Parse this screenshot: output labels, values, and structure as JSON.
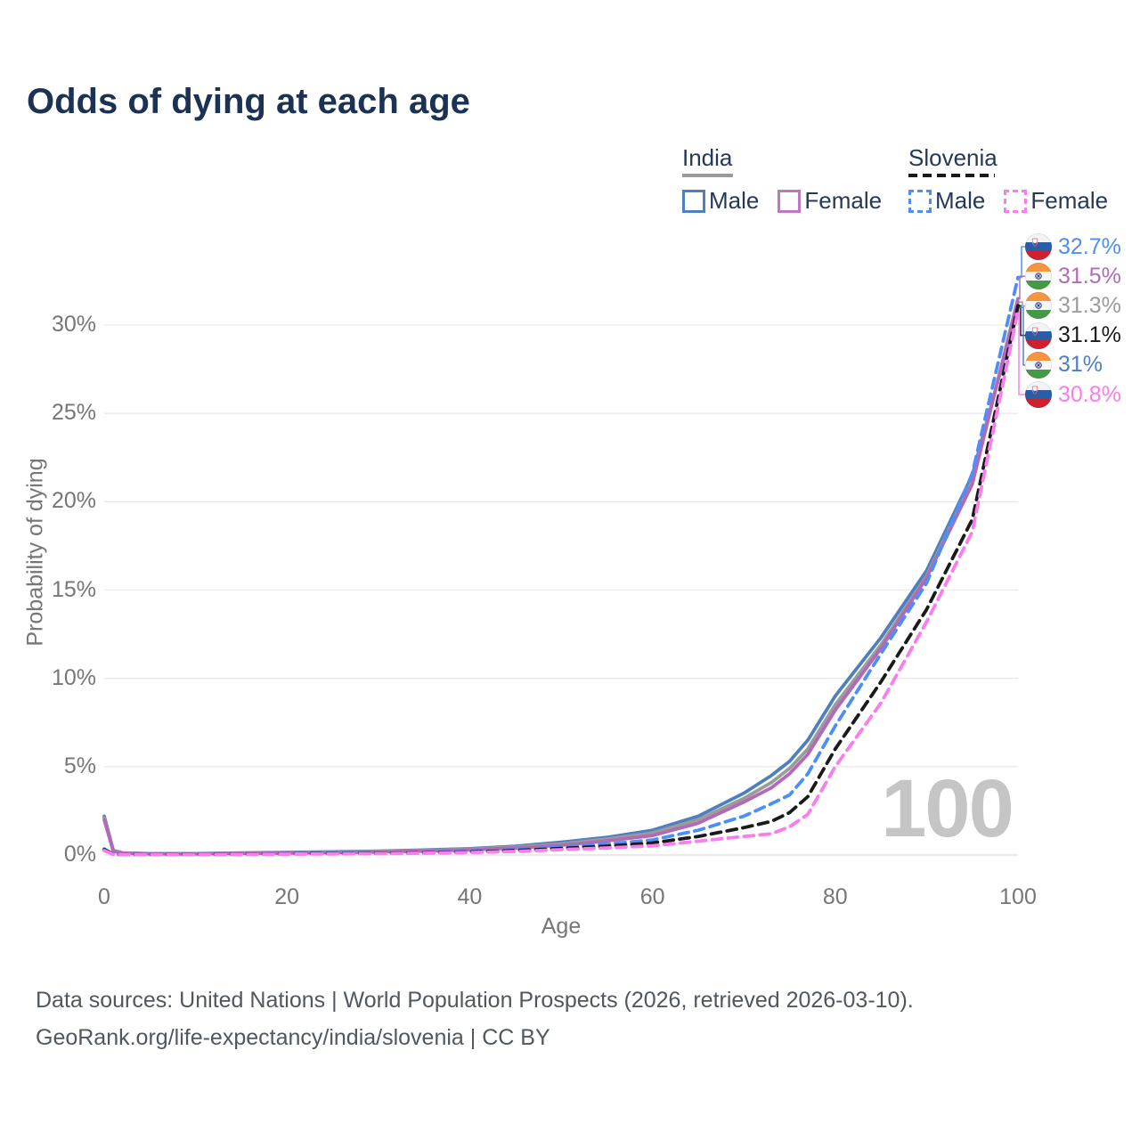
{
  "title": "Odds of dying at each age",
  "colors": {
    "title_text": "#1b3254",
    "legend_text": "#24395a",
    "axis_text": "#767676",
    "gridline": "#e9e9e9",
    "axis_line": "#dcdcdc",
    "watermark": "#c5c5c5",
    "india_male": "#4e7fbe",
    "india_female": "#b269b8",
    "india_both": "#9b9b9b",
    "slovenia_male": "#4d8ef7",
    "slovenia_both": "#1a1a1a",
    "slovenia_female": "#fb7ced",
    "india_flag": {
      "saffron": "#f79440",
      "white": "#f6f7f9",
      "green": "#459a45",
      "navy": "#2a3a8c"
    },
    "slovenia_flag": {
      "white": "#f2f3f5",
      "blue": "#2a5da8",
      "red": "#cf2030"
    }
  },
  "legend": {
    "groups": [
      {
        "id": "india",
        "label": "India",
        "underline": "solid",
        "underline_color": "#9b9b9b",
        "items": [
          {
            "label": "Male",
            "color": "#4e7fbe",
            "dashed": false,
            "checked": false
          },
          {
            "label": "Female",
            "color": "#bf77c0",
            "dashed": false,
            "checked": false
          }
        ]
      },
      {
        "id": "slovenia",
        "label": "Slovenia",
        "underline": "dashed",
        "underline_color": "#1a1a1a",
        "items": [
          {
            "label": "Male",
            "color": "#4d8ef7",
            "dashed": true,
            "checked": false
          },
          {
            "label": "Female",
            "color": "#fb7ced",
            "dashed": true,
            "checked": false
          }
        ]
      }
    ]
  },
  "chart_data": {
    "type": "line",
    "title": "Odds of dying at each age",
    "xlabel": "Age",
    "ylabel": "Probability of dying",
    "xlim": [
      0,
      100
    ],
    "ylim": [
      0,
      33
    ],
    "x_ticks": [
      0,
      20,
      40,
      60,
      80,
      100
    ],
    "y_ticks": [
      {
        "label": "0%",
        "pct": 0
      },
      {
        "label": "5%",
        "pct": 5
      },
      {
        "label": "10%",
        "pct": 10
      },
      {
        "label": "15%",
        "pct": 15
      },
      {
        "label": "20%",
        "pct": 20
      },
      {
        "label": "25%",
        "pct": 25
      },
      {
        "label": "30%",
        "pct": 30
      }
    ],
    "grid": "horizontal",
    "legend_position": "top-right",
    "hover_age_watermark": "100",
    "ages": [
      0,
      1,
      2,
      5,
      10,
      15,
      20,
      25,
      30,
      35,
      40,
      45,
      50,
      55,
      60,
      65,
      70,
      73,
      75,
      77,
      80,
      85,
      90,
      95,
      100
    ],
    "series": [
      {
        "id": "india-male",
        "name": "India Male",
        "color": "#4e7fbe",
        "dashed": false,
        "end_value_label": "31%",
        "values": [
          2.2,
          0.25,
          0.12,
          0.08,
          0.08,
          0.12,
          0.15,
          0.18,
          0.22,
          0.28,
          0.36,
          0.5,
          0.72,
          1.0,
          1.4,
          2.2,
          3.5,
          4.5,
          5.3,
          6.5,
          9.0,
          12.3,
          16.1,
          21.5,
          31.0
        ]
      },
      {
        "id": "india-both",
        "name": "India (both sexes)",
        "color": "#9b9b9b",
        "dashed": false,
        "end_value_label": "31.3%",
        "values": [
          2.1,
          0.22,
          0.11,
          0.07,
          0.07,
          0.1,
          0.13,
          0.16,
          0.2,
          0.25,
          0.33,
          0.45,
          0.63,
          0.9,
          1.25,
          2.0,
          3.2,
          4.1,
          4.9,
          6.0,
          8.5,
          11.9,
          15.8,
          21.2,
          31.3
        ]
      },
      {
        "id": "india-female",
        "name": "India Female",
        "color": "#b269b8",
        "dashed": false,
        "end_value_label": "31.5%",
        "values": [
          2.0,
          0.2,
          0.1,
          0.06,
          0.06,
          0.09,
          0.11,
          0.14,
          0.17,
          0.22,
          0.29,
          0.4,
          0.55,
          0.8,
          1.1,
          1.8,
          3.0,
          3.8,
          4.6,
          5.7,
          8.2,
          11.7,
          15.7,
          21.0,
          31.5
        ]
      },
      {
        "id": "slovenia-male",
        "name": "Slovenia Male",
        "color": "#4d8ef7",
        "dashed": true,
        "end_value_label": "32.7%",
        "values": [
          0.35,
          0.04,
          0.03,
          0.03,
          0.03,
          0.05,
          0.08,
          0.1,
          0.12,
          0.15,
          0.2,
          0.3,
          0.45,
          0.62,
          0.85,
          1.4,
          2.2,
          2.9,
          3.4,
          4.6,
          7.3,
          11.4,
          15.4,
          21.6,
          32.7
        ]
      },
      {
        "id": "slovenia-both",
        "name": "Slovenia (both sexes)",
        "color": "#1a1a1a",
        "dashed": true,
        "end_value_label": "31.1%",
        "values": [
          0.3,
          0.03,
          0.02,
          0.02,
          0.03,
          0.04,
          0.06,
          0.08,
          0.1,
          0.12,
          0.17,
          0.25,
          0.37,
          0.5,
          0.68,
          1.05,
          1.55,
          1.9,
          2.4,
          3.3,
          6.0,
          9.8,
          13.9,
          19.0,
          31.1
        ]
      },
      {
        "id": "slovenia-female",
        "name": "Slovenia Female",
        "color": "#fb7ced",
        "dashed": true,
        "end_value_label": "30.8%",
        "values": [
          0.25,
          0.03,
          0.02,
          0.02,
          0.02,
          0.03,
          0.05,
          0.06,
          0.08,
          0.1,
          0.14,
          0.2,
          0.3,
          0.4,
          0.52,
          0.78,
          1.05,
          1.2,
          1.6,
          2.3,
          5.0,
          8.6,
          13.2,
          18.3,
          30.8
        ]
      }
    ],
    "end_labels": [
      {
        "flag": "slovenia",
        "label": "32.7%",
        "value": 32.7,
        "color": "#4d8ef7",
        "series": "slovenia-male"
      },
      {
        "flag": "india",
        "label": "31.5%",
        "value": 31.5,
        "color": "#b269b8",
        "series": "india-female"
      },
      {
        "flag": "india",
        "label": "31.3%",
        "value": 31.3,
        "color": "#9b9b9b",
        "series": "india-both"
      },
      {
        "flag": "slovenia",
        "label": "31.1%",
        "value": 31.1,
        "color": "#1a1a1a",
        "series": "slovenia-both"
      },
      {
        "flag": "india",
        "label": "31%",
        "value": 31.0,
        "color": "#4e7fbe",
        "series": "india-male"
      },
      {
        "flag": "slovenia",
        "label": "30.8%",
        "value": 30.8,
        "color": "#fb7ced",
        "series": "slovenia-female"
      }
    ]
  },
  "footer": {
    "line1": "Data sources: United Nations | World Population Prospects (2026, retrieved 2026-03-10).",
    "line2": "GeoRank.org/life-expectancy/india/slovenia | CC BY"
  }
}
